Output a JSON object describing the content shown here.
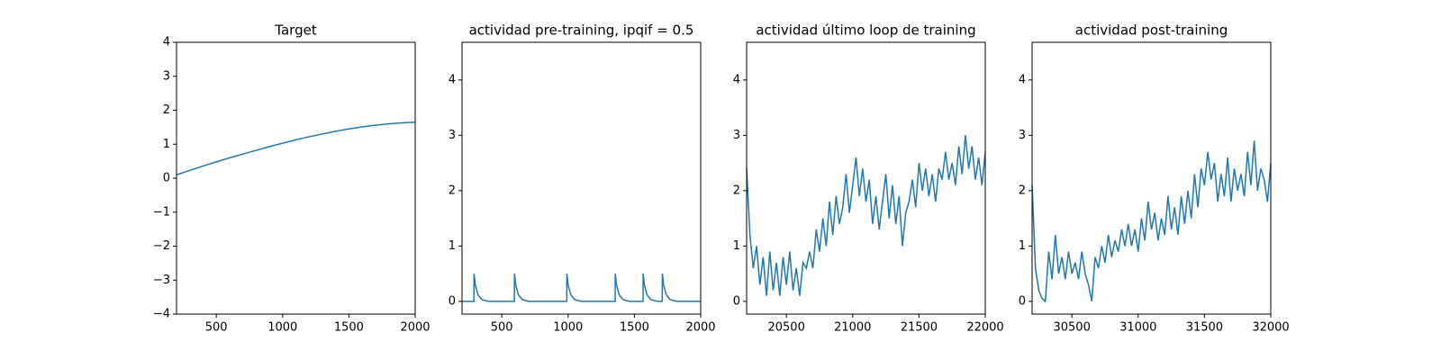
{
  "chart_data": [
    {
      "type": "line",
      "title": "Target",
      "color": "#1f77b4",
      "x": [
        200,
        300,
        400,
        500,
        600,
        700,
        800,
        900,
        1000,
        1100,
        1200,
        1300,
        1400,
        1500,
        1600,
        1700,
        1800,
        1900,
        2000
      ],
      "values": [
        0.1,
        0.23,
        0.36,
        0.48,
        0.6,
        0.71,
        0.82,
        0.93,
        1.03,
        1.13,
        1.22,
        1.3,
        1.38,
        1.45,
        1.51,
        1.56,
        1.6,
        1.63,
        1.65
      ],
      "xlim": [
        200,
        2000
      ],
      "ylim": [
        -4,
        4
      ],
      "xticks": [
        500,
        1000,
        1500,
        2000
      ],
      "yticks": [
        {
          "value": -4,
          "label": "−4"
        },
        {
          "value": -3,
          "label": "−3"
        },
        {
          "value": -2,
          "label": "−2"
        },
        {
          "value": -1,
          "label": "−1"
        },
        0,
        1,
        2,
        3,
        4
      ]
    },
    {
      "type": "line",
      "title": "actividad pre-training, ipqif = 0.5",
      "color": "#1f77b4",
      "x": [
        200,
        290,
        291,
        300,
        320,
        350,
        400,
        595,
        596,
        605,
        625,
        655,
        705,
        990,
        991,
        1000,
        1020,
        1050,
        1100,
        1355,
        1356,
        1365,
        1385,
        1415,
        1465,
        1565,
        1566,
        1575,
        1595,
        1625,
        1675,
        1710,
        1711,
        1720,
        1740,
        1770,
        1820,
        2000
      ],
      "values": [
        0,
        0,
        0.5,
        0.3,
        0.12,
        0.03,
        0,
        0,
        0.5,
        0.3,
        0.12,
        0.03,
        0,
        0,
        0.5,
        0.3,
        0.12,
        0.03,
        0,
        0,
        0.5,
        0.3,
        0.12,
        0.03,
        0,
        0,
        0.5,
        0.3,
        0.12,
        0.03,
        0,
        0,
        0.5,
        0.3,
        0.12,
        0.03,
        0,
        0
      ],
      "xlim": [
        200,
        2000
      ],
      "ylim": [
        -0.23,
        4.68
      ],
      "xticks": [
        500,
        1000,
        1500,
        2000
      ],
      "yticks": [
        0,
        1,
        2,
        3,
        4
      ]
    },
    {
      "type": "line",
      "title": "actividad último loop de training",
      "color": "#1f77b4",
      "x": [
        20200,
        20225,
        20250,
        20275,
        20300,
        20325,
        20350,
        20375,
        20400,
        20425,
        20450,
        20475,
        20500,
        20525,
        20550,
        20575,
        20600,
        20625,
        20650,
        20675,
        20700,
        20725,
        20750,
        20775,
        20800,
        20825,
        20850,
        20875,
        20900,
        20925,
        20950,
        20975,
        21000,
        21025,
        21050,
        21075,
        21100,
        21125,
        21150,
        21175,
        21200,
        21225,
        21250,
        21275,
        21300,
        21325,
        21350,
        21375,
        21400,
        21425,
        21450,
        21475,
        21500,
        21525,
        21550,
        21575,
        21600,
        21625,
        21650,
        21675,
        21700,
        21725,
        21750,
        21775,
        21800,
        21825,
        21850,
        21875,
        21900,
        21925,
        21950,
        21975,
        22000
      ],
      "values": [
        2.4,
        1.2,
        0.6,
        1.0,
        0.3,
        0.8,
        0.1,
        0.9,
        0.2,
        0.7,
        0.1,
        0.8,
        0.3,
        0.9,
        0.2,
        0.6,
        0.1,
        0.7,
        0.6,
        0.9,
        0.6,
        1.3,
        0.9,
        1.5,
        1.0,
        1.8,
        1.2,
        1.9,
        1.4,
        1.7,
        2.3,
        1.6,
        2.1,
        2.6,
        1.9,
        2.4,
        1.8,
        2.2,
        1.4,
        1.9,
        1.3,
        1.8,
        2.3,
        1.5,
        2.1,
        1.4,
        1.9,
        1.0,
        1.6,
        1.8,
        2.2,
        1.7,
        2.5,
        2.0,
        2.4,
        1.9,
        2.3,
        1.8,
        2.4,
        2.2,
        2.7,
        2.2,
        2.5,
        2.1,
        2.8,
        2.3,
        3.0,
        2.4,
        2.8,
        2.2,
        2.6,
        2.1,
        2.7
      ],
      "xlim": [
        20200,
        22000
      ],
      "ylim": [
        -0.23,
        4.68
      ],
      "xticks": [
        20500,
        21000,
        21500,
        22000
      ],
      "yticks": [
        0,
        1,
        2,
        3,
        4
      ]
    },
    {
      "type": "line",
      "title": "actividad post-training",
      "color": "#1f77b4",
      "x": [
        30200,
        30225,
        30250,
        30275,
        30300,
        30325,
        30350,
        30375,
        30400,
        30425,
        30450,
        30475,
        30500,
        30525,
        30550,
        30575,
        30600,
        30625,
        30650,
        30675,
        30700,
        30725,
        30750,
        30775,
        30800,
        30825,
        30850,
        30875,
        30900,
        30925,
        30950,
        30975,
        31000,
        31025,
        31050,
        31075,
        31100,
        31125,
        31150,
        31175,
        31200,
        31225,
        31250,
        31275,
        31300,
        31325,
        31350,
        31375,
        31400,
        31425,
        31450,
        31475,
        31500,
        31525,
        31550,
        31575,
        31600,
        31625,
        31650,
        31675,
        31700,
        31725,
        31750,
        31775,
        31800,
        31825,
        31850,
        31875,
        31900,
        31925,
        31950,
        31975,
        32000
      ],
      "values": [
        2.1,
        0.6,
        0.2,
        0.05,
        0.0,
        0.9,
        0.4,
        1.2,
        0.5,
        0.8,
        0.4,
        0.9,
        0.5,
        0.7,
        0.4,
        0.9,
        0.5,
        0.3,
        0.0,
        0.8,
        0.6,
        1.0,
        0.7,
        1.2,
        0.8,
        1.1,
        0.9,
        1.3,
        1.0,
        1.4,
        1.0,
        1.3,
        0.9,
        1.5,
        1.1,
        1.8,
        1.3,
        1.6,
        1.1,
        1.5,
        1.2,
        1.9,
        1.3,
        1.7,
        1.2,
        1.9,
        1.4,
        2.0,
        1.5,
        2.3,
        1.7,
        2.4,
        2.1,
        2.7,
        2.2,
        2.5,
        1.8,
        2.3,
        1.9,
        2.6,
        1.8,
        2.4,
        2.0,
        2.3,
        1.9,
        2.7,
        2.1,
        2.9,
        2.0,
        2.4,
        2.2,
        1.8,
        2.5
      ],
      "xlim": [
        30200,
        32000
      ],
      "ylim": [
        -0.23,
        4.68
      ],
      "xticks": [
        30500,
        31000,
        31500,
        32000
      ],
      "yticks": [
        0,
        1,
        2,
        3,
        4
      ]
    }
  ]
}
